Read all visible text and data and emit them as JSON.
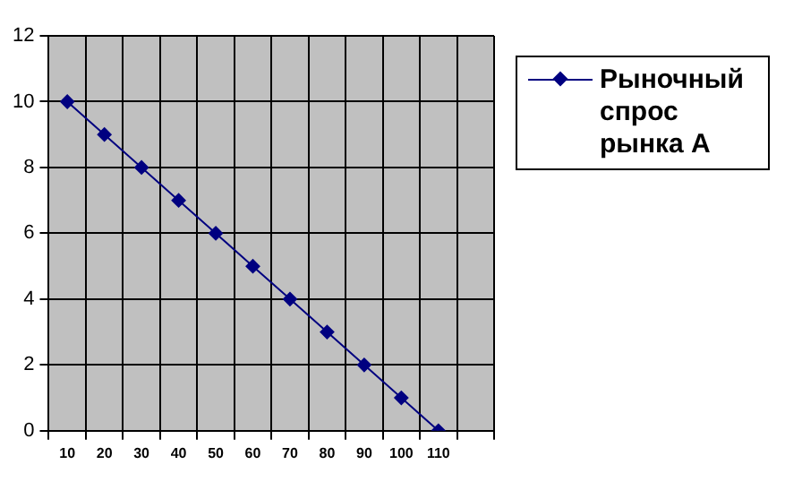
{
  "chart_data": {
    "type": "line",
    "categories": [
      "10",
      "20",
      "30",
      "40",
      "50",
      "60",
      "70",
      "80",
      "90",
      "100",
      "110",
      null
    ],
    "series": [
      {
        "name": "Рыночный спрос рынка А",
        "color": "#000080",
        "values": [
          10,
          9,
          8,
          7,
          6,
          5,
          4,
          3,
          2,
          1,
          0,
          null
        ]
      }
    ],
    "ylim": [
      0,
      12
    ],
    "yticks": [
      0,
      2,
      4,
      6,
      8,
      10,
      12
    ],
    "grid": true,
    "legend": "top right",
    "marker": "diamond",
    "line_style": "solid"
  }
}
